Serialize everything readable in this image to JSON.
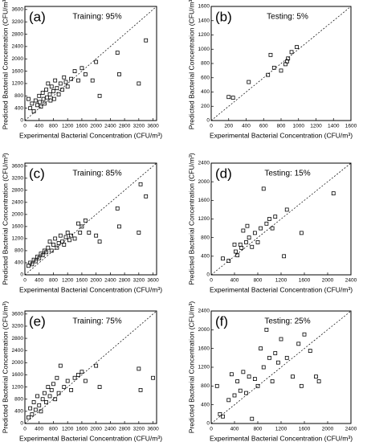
{
  "chart_data": [
    {
      "type": "scatter",
      "panel_label": "(a)",
      "annotation": "Training: 95%",
      "xlabel": "Experimental Bacterial Concentration (CFU/m³)",
      "ylabel": "Predicted Bacterial Concentration (CFU/m³)",
      "xlim": [
        0,
        3700
      ],
      "ylim": [
        0,
        3700
      ],
      "xticks": [
        0,
        400,
        800,
        1200,
        1600,
        2000,
        2400,
        2800,
        3200,
        3600
      ],
      "yticks": [
        0,
        400,
        800,
        1200,
        1600,
        2000,
        2400,
        2800,
        3200,
        3600
      ],
      "color": "#000000",
      "x": [
        100,
        150,
        200,
        250,
        300,
        350,
        400,
        420,
        450,
        500,
        520,
        550,
        600,
        620,
        650,
        700,
        720,
        750,
        800,
        820,
        850,
        900,
        950,
        1000,
        1050,
        1100,
        1150,
        1200,
        1300,
        1400,
        1500,
        1600,
        1700,
        1900,
        2000,
        2100,
        2600,
        2650,
        3200,
        3400
      ],
      "values": [
        700,
        400,
        550,
        300,
        650,
        500,
        800,
        600,
        450,
        900,
        700,
        550,
        1000,
        750,
        1200,
        850,
        650,
        1100,
        950,
        700,
        1300,
        1050,
        850,
        1200,
        1000,
        1400,
        1250,
        1100,
        1350,
        1600,
        1300,
        1700,
        1500,
        1300,
        1900,
        800,
        2200,
        1500,
        1200,
        2600
      ]
    },
    {
      "type": "scatter",
      "panel_label": "(b)",
      "annotation": "Testing: 5%",
      "xlabel": "Experimental Bacterial Concentration (CFU/m³)",
      "ylabel": "Predicted Bacterial Concentration (CFU/m³)",
      "xlim": [
        0,
        1600
      ],
      "ylim": [
        0,
        1600
      ],
      "xticks": [
        0,
        200,
        400,
        600,
        800,
        1000,
        1200,
        1400,
        1600
      ],
      "yticks": [
        0,
        200,
        400,
        600,
        800,
        1000,
        1200,
        1400,
        1600
      ],
      "color": "#000000",
      "x": [
        200,
        250,
        430,
        650,
        680,
        720,
        800,
        850,
        870,
        880,
        920,
        980
      ],
      "values": [
        330,
        320,
        540,
        640,
        920,
        740,
        700,
        790,
        830,
        870,
        960,
        1030
      ]
    },
    {
      "type": "scatter",
      "panel_label": "(c)",
      "annotation": "Training: 85%",
      "xlabel": "Experimental Bacterial Concentration (CFU/m³)",
      "ylabel": "Predicted Bacterial Concentration (CFU/m³)",
      "xlim": [
        0,
        3700
      ],
      "ylim": [
        0,
        3700
      ],
      "xticks": [
        0,
        400,
        800,
        1200,
        1600,
        2000,
        2400,
        2800,
        3200,
        3600
      ],
      "yticks": [
        0,
        400,
        800,
        1200,
        1600,
        2000,
        2400,
        2800,
        3200,
        3600
      ],
      "color": "#000000",
      "x": [
        100,
        150,
        200,
        250,
        300,
        350,
        400,
        450,
        500,
        550,
        600,
        650,
        700,
        750,
        800,
        850,
        900,
        950,
        1000,
        1050,
        1100,
        1150,
        1200,
        1250,
        1300,
        1400,
        1500,
        1550,
        1600,
        1700,
        1800,
        2000,
        2100,
        2600,
        2650,
        3200,
        3250,
        3400
      ],
      "values": [
        300,
        400,
        350,
        500,
        450,
        600,
        550,
        700,
        650,
        800,
        750,
        900,
        1100,
        800,
        1000,
        1200,
        900,
        1050,
        1300,
        1100,
        1000,
        1250,
        1400,
        1150,
        1300,
        1200,
        1700,
        1400,
        1600,
        1800,
        1400,
        1300,
        1100,
        2200,
        1600,
        1400,
        3000,
        2600
      ]
    },
    {
      "type": "scatter",
      "panel_label": "(d)",
      "annotation": "Testing: 15%",
      "xlabel": "Experimental Bacterial Concentration (CFU/m³)",
      "ylabel": "Predicted Bacterial Concentration (CFU/m³)",
      "xlim": [
        0,
        2400
      ],
      "ylim": [
        0,
        2400
      ],
      "xticks": [
        0,
        400,
        800,
        1200,
        1600,
        2000,
        2400
      ],
      "yticks": [
        0,
        400,
        800,
        1200,
        1600,
        2000,
        2400
      ],
      "color": "#000000",
      "x": [
        200,
        300,
        400,
        420,
        450,
        500,
        520,
        550,
        600,
        620,
        650,
        700,
        750,
        800,
        850,
        900,
        950,
        1000,
        1050,
        1100,
        1250,
        1300,
        1550,
        2100
      ],
      "values": [
        350,
        300,
        650,
        500,
        420,
        650,
        580,
        950,
        700,
        1050,
        800,
        600,
        900,
        700,
        1000,
        1850,
        1100,
        1200,
        1000,
        1250,
        400,
        1400,
        900,
        1750
      ]
    },
    {
      "type": "scatter",
      "panel_label": "(e)",
      "annotation": "Training: 75%",
      "xlabel": "Experimental Bacterial Concentration (CFU/m³)",
      "ylabel": "Predicted Bacterial Concentration (CFU/m³)",
      "xlim": [
        0,
        3700
      ],
      "ylim": [
        0,
        3700
      ],
      "xticks": [
        0,
        400,
        800,
        1200,
        1600,
        2000,
        2400,
        2800,
        3200,
        3600
      ],
      "yticks": [
        0,
        400,
        800,
        1200,
        1600,
        2000,
        2400,
        2800,
        3200,
        3600
      ],
      "color": "#000000",
      "x": [
        100,
        150,
        200,
        250,
        300,
        350,
        400,
        450,
        500,
        550,
        600,
        650,
        700,
        750,
        800,
        850,
        900,
        950,
        1000,
        1100,
        1200,
        1300,
        1400,
        1500,
        1600,
        1700,
        2000,
        2100,
        3200,
        3250,
        3600
      ],
      "values": [
        200,
        500,
        300,
        700,
        450,
        900,
        600,
        400,
        800,
        1000,
        700,
        1200,
        900,
        1100,
        1300,
        800,
        1500,
        1000,
        1900,
        1200,
        1400,
        1100,
        1500,
        1600,
        1700,
        1400,
        1900,
        1200,
        1800,
        1100,
        1500
      ]
    },
    {
      "type": "scatter",
      "panel_label": "(f)",
      "annotation": "Testing: 25%",
      "xlabel": "Experimental Bacterial Concentration (CFU/m³)",
      "ylabel": "Predicted Bacterial Concentration (CFU/m³)",
      "xlim": [
        0,
        2400
      ],
      "ylim": [
        0,
        2400
      ],
      "xticks": [
        0,
        400,
        800,
        1200,
        1600,
        2000,
        2400
      ],
      "yticks": [
        0,
        400,
        800,
        1200,
        1600,
        2000,
        2400
      ],
      "color": "#000000",
      "x": [
        100,
        150,
        200,
        300,
        350,
        400,
        450,
        500,
        550,
        600,
        650,
        700,
        750,
        800,
        850,
        900,
        950,
        1000,
        1050,
        1100,
        1150,
        1200,
        1300,
        1400,
        1500,
        1550,
        1600,
        1700,
        1800,
        1850
      ],
      "values": [
        800,
        200,
        150,
        500,
        1050,
        600,
        900,
        700,
        1100,
        650,
        1000,
        100,
        950,
        800,
        1600,
        1200,
        2000,
        1400,
        900,
        1500,
        1300,
        1800,
        1400,
        1000,
        1700,
        800,
        1900,
        1550,
        1000,
        900
      ]
    }
  ]
}
